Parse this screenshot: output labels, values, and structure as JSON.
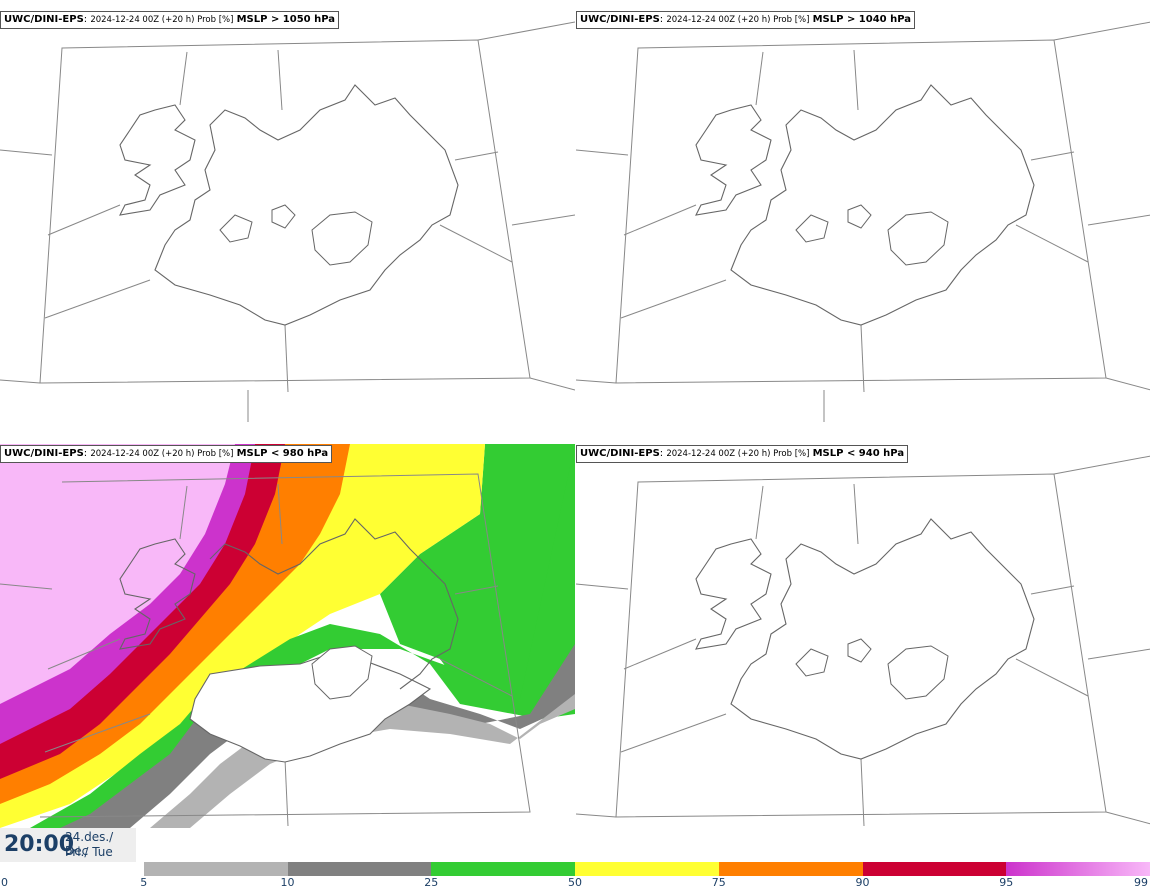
{
  "panels": [
    {
      "model": "UWC/DINI-EPS",
      "meta": "2024-12-24 00Z (+20 h) Prob [%]",
      "var": "MSLP > 1050 hPa"
    },
    {
      "model": "UWC/DINI-EPS",
      "meta": "2024-12-24 00Z (+20 h) Prob [%]",
      "var": "MSLP > 1040 hPa"
    },
    {
      "model": "UWC/DINI-EPS",
      "meta": "2024-12-24 00Z (+20 h) Prob [%]",
      "var": "MSLP < 980 hPa"
    },
    {
      "model": "UWC/DINI-EPS",
      "meta": "2024-12-24 00Z (+20 h) Prob [%]",
      "var": "MSLP < 940 hPa"
    }
  ],
  "valid_time": {
    "time": "20:00",
    "date_line1": "24.des./ Dec",
    "date_line2": "Þri./ Tue"
  },
  "colorbar": {
    "ticks": [
      "0",
      "5",
      "10",
      "25",
      "50",
      "75",
      "90",
      "95",
      "99"
    ],
    "colors": [
      "#ffffff",
      "#b3b3b3",
      "#808080",
      "#33cc33",
      "#ffff33",
      "#ff7f00",
      "#cc0033",
      "#cc33cc",
      "#f8b8f8"
    ]
  }
}
